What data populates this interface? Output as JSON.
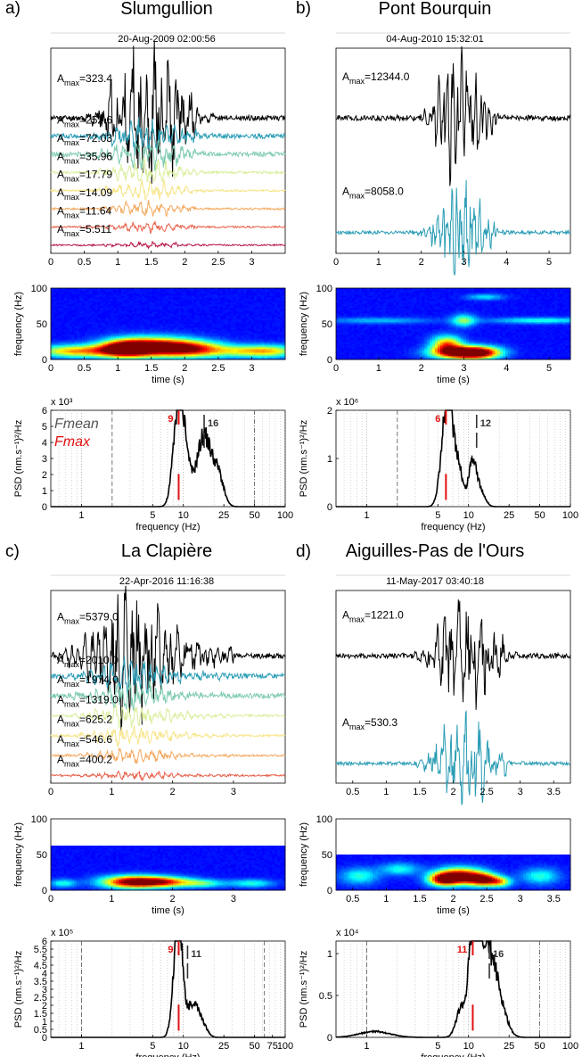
{
  "colors": {
    "trace_palette": [
      "#000000",
      "#2b9db5",
      "#7fcbb0",
      "#d9ee9c",
      "#f7e58a",
      "#f4a95f",
      "#e8604a",
      "#b51545"
    ],
    "fmean": "#333333",
    "fmax": "#e01010",
    "spec_background": "#0a0a8c"
  },
  "chart_data": [
    {
      "label": "a)",
      "title": "Slumgullion",
      "timestamp": "20-Aug-2009 02:00:56",
      "traces": {
        "type": "line",
        "x_range": [
          0,
          3.5
        ],
        "x_ticks": [
          0,
          0.5,
          1,
          1.5,
          2,
          2.5,
          3
        ],
        "x_tick_labels": [
          "0",
          "0.5",
          "1",
          "1.5",
          "2",
          "2.5",
          "3"
        ],
        "event_window": [
          0.7,
          2.2
        ],
        "peak_time": 1.45,
        "series": [
          {
            "a_max": "323.4",
            "seed": 11
          },
          {
            "a_max": "252.6",
            "seed": 12
          },
          {
            "a_max": "72.03",
            "seed": 13
          },
          {
            "a_max": "35.96",
            "seed": 14
          },
          {
            "a_max": "17.79",
            "seed": 15
          },
          {
            "a_max": "14.09",
            "seed": 16
          },
          {
            "a_max": "11.64",
            "seed": 17
          },
          {
            "a_max": "5.511",
            "seed": 18
          }
        ]
      },
      "spectrogram": {
        "type": "heatmap",
        "ylabel": "frequency (Hz)",
        "xlabel": "time (s)",
        "y_range": [
          0,
          100
        ],
        "y_ticks": [
          0,
          50,
          100
        ],
        "x_range": [
          0,
          3.5
        ],
        "x_ticks": [
          0,
          0.5,
          1,
          1.5,
          2,
          2.5,
          3
        ],
        "x_tick_labels": [
          "0",
          "0.5",
          "1",
          "1.5",
          "2",
          "2.5",
          "3"
        ],
        "nyquist": 100,
        "blobs": [
          {
            "t": 1.5,
            "f": 18,
            "st": 0.42,
            "sf": 9,
            "a": 1.0
          },
          {
            "t": 1.1,
            "f": 15,
            "st": 0.25,
            "sf": 8,
            "a": 0.8
          },
          {
            "t": 2.1,
            "f": 15,
            "st": 0.35,
            "sf": 8,
            "a": 0.65
          },
          {
            "t": 0.6,
            "f": 12,
            "st": 0.35,
            "sf": 6,
            "a": 0.45
          },
          {
            "t": 2.9,
            "f": 12,
            "st": 0.4,
            "sf": 6,
            "a": 0.4
          },
          {
            "t": 0.15,
            "f": 12,
            "st": 0.3,
            "sf": 6,
            "a": 0.35
          },
          {
            "t": 3.3,
            "f": 12,
            "st": 0.3,
            "sf": 6,
            "a": 0.35
          }
        ]
      },
      "psd": {
        "type": "line",
        "xscale": "log",
        "x_range": [
          0.5,
          100
        ],
        "x_ticks": [
          1,
          5,
          10,
          25,
          50,
          100
        ],
        "x_tick_labels": [
          "1",
          "5",
          "10",
          "25",
          "50",
          "100"
        ],
        "xlabel": "frequency (Hz)",
        "ylabel": "PSD (nm.s⁻¹)²/Hz",
        "multiplier": "x 10³",
        "y_range": [
          0,
          6
        ],
        "y_ticks": [
          0,
          1,
          2,
          3,
          4,
          5,
          6
        ],
        "dashed_lines": [
          2
        ],
        "dashdot_lines": [
          50
        ],
        "peaks": [
          {
            "f": 9,
            "a": 6.6,
            "w": 0.05
          },
          {
            "f": 10.5,
            "a": 1.8,
            "w": 0.04
          },
          {
            "f": 12.5,
            "a": 1.0,
            "w": 0.05
          },
          {
            "f": 15,
            "a": 2.6,
            "w": 0.05
          },
          {
            "f": 17,
            "a": 2.0,
            "w": 0.05
          },
          {
            "f": 20,
            "a": 1.5,
            "w": 0.06
          },
          {
            "f": 22.5,
            "a": 1.1,
            "w": 0.05
          }
        ],
        "fmax": {
          "f": 9,
          "label": "9"
        },
        "fmean": {
          "f": 16,
          "label": "16"
        }
      }
    },
    {
      "label": "b)",
      "title": "Pont Bourquin",
      "timestamp": "04-Aug-2010 15:32:01",
      "traces": {
        "type": "line",
        "x_range": [
          0,
          5.5
        ],
        "x_ticks": [
          0,
          1,
          2,
          3,
          4,
          5
        ],
        "x_tick_labels": [
          "0",
          "1",
          "2",
          "3",
          "4",
          "5"
        ],
        "event_window": [
          2.2,
          3.8
        ],
        "peak_time": 2.9,
        "series": [
          {
            "a_max": "12344.0",
            "seed": 21
          },
          {
            "a_max": "8058.0",
            "seed": 22
          }
        ]
      },
      "spectrogram": {
        "type": "heatmap",
        "ylabel": "frequency (Hz)",
        "xlabel": "time (s)",
        "y_range": [
          0,
          100
        ],
        "y_ticks": [
          0,
          50,
          100
        ],
        "x_range": [
          0,
          5.5
        ],
        "x_ticks": [
          0,
          1,
          2,
          3,
          4,
          5
        ],
        "x_tick_labels": [
          "0",
          "1",
          "2",
          "3",
          "4",
          "5"
        ],
        "nyquist": 100,
        "blobs": [
          {
            "t": 2.9,
            "f": 10,
            "st": 0.45,
            "sf": 6,
            "a": 1.0
          },
          {
            "t": 2.6,
            "f": 22,
            "st": 0.25,
            "sf": 8,
            "a": 0.65
          },
          {
            "t": 3.4,
            "f": 10,
            "st": 0.35,
            "sf": 6,
            "a": 0.7
          },
          {
            "t": 3.0,
            "f": 55,
            "st": 0.2,
            "sf": 6,
            "a": 0.4
          },
          {
            "t": 4.8,
            "f": 55,
            "st": 0.8,
            "sf": 3,
            "a": 0.3
          },
          {
            "t": 1.0,
            "f": 55,
            "st": 0.9,
            "sf": 3,
            "a": 0.2
          },
          {
            "t": 3.5,
            "f": 88,
            "st": 0.3,
            "sf": 3,
            "a": 0.25
          }
        ]
      },
      "psd": {
        "type": "line",
        "xscale": "log",
        "x_range": [
          0.5,
          100
        ],
        "x_ticks": [
          1,
          5,
          10,
          25,
          50,
          100
        ],
        "x_tick_labels": [
          "1",
          "5",
          "10",
          "25",
          "50",
          "100"
        ],
        "xlabel": "frequency (Hz)",
        "ylabel": "PSD (nm.s⁻¹)²/Hz",
        "multiplier": "x 10⁶",
        "y_range": [
          0,
          2
        ],
        "y_ticks": [
          0,
          1,
          2
        ],
        "dashed_lines": [
          2
        ],
        "dashdot_lines": [],
        "peaks": [
          {
            "f": 6.3,
            "a": 2.2,
            "w": 0.05
          },
          {
            "f": 5.4,
            "a": 0.3,
            "w": 0.04
          },
          {
            "f": 8.0,
            "a": 0.75,
            "w": 0.04
          },
          {
            "f": 11,
            "a": 1.0,
            "w": 0.04
          },
          {
            "f": 13.5,
            "a": 0.25,
            "w": 0.04
          }
        ],
        "fmax": {
          "f": 6,
          "label": "6"
        },
        "fmean": {
          "f": 12,
          "label": "12"
        }
      }
    },
    {
      "label": "c)",
      "title": "La Clapière",
      "timestamp": "22-Apr-2016 11:16:38",
      "traces": {
        "type": "line",
        "x_range": [
          0,
          3.85
        ],
        "x_ticks": [
          0,
          1,
          2,
          3
        ],
        "x_tick_labels": [
          "0",
          "1",
          "2",
          "3"
        ],
        "event_window": [
          1.0,
          3.0
        ],
        "peak_time": 1.3,
        "series": [
          {
            "a_max": "5379.0",
            "seed": 31
          },
          {
            "a_max": "2010.0",
            "seed": 32
          },
          {
            "a_max": "1974.0",
            "seed": 33
          },
          {
            "a_max": "1319.0",
            "seed": 34
          },
          {
            "a_max": "625.2",
            "seed": 35
          },
          {
            "a_max": "546.6",
            "seed": 36
          },
          {
            "a_max": "400.2",
            "seed": 37
          }
        ]
      },
      "spectrogram": {
        "type": "heatmap",
        "ylabel": "frequency (Hz)",
        "xlabel": "time (s)",
        "y_range": [
          0,
          100
        ],
        "y_ticks": [
          0,
          50,
          100
        ],
        "x_range": [
          0,
          3.85
        ],
        "x_ticks": [
          0,
          1,
          2,
          3
        ],
        "x_tick_labels": [
          "0",
          "1",
          "2",
          "3"
        ],
        "nyquist": 62.5,
        "blobs": [
          {
            "t": 1.35,
            "f": 12,
            "st": 0.35,
            "sf": 6,
            "a": 1.0
          },
          {
            "t": 1.9,
            "f": 12,
            "st": 0.3,
            "sf": 5,
            "a": 0.6
          },
          {
            "t": 2.5,
            "f": 10,
            "st": 0.25,
            "sf": 4,
            "a": 0.35
          },
          {
            "t": 0.2,
            "f": 10,
            "st": 0.15,
            "sf": 4,
            "a": 0.3
          },
          {
            "t": 3.3,
            "f": 10,
            "st": 0.25,
            "sf": 4,
            "a": 0.3
          }
        ]
      },
      "psd": {
        "type": "line",
        "xscale": "log",
        "x_range": [
          0.5,
          100
        ],
        "x_ticks": [
          1,
          5,
          10,
          25,
          50,
          75,
          100
        ],
        "x_tick_labels": [
          "1",
          "5",
          "10",
          "25",
          "50",
          "75",
          "100"
        ],
        "xlabel": "frequency (Hz)",
        "ylabel": "PSD (nm.s⁻¹)²/Hz",
        "multiplier": "x 10⁵",
        "y_range": [
          0,
          6
        ],
        "y_ticks": [
          0,
          0.5,
          1,
          1.5,
          2,
          2.5,
          3,
          3.5,
          4,
          4.5,
          5,
          5.5,
          6
        ],
        "dashed_lines": [
          1,
          62.5
        ],
        "dashdot_lines": [],
        "peaks": [
          {
            "f": 9,
            "a": 6.5,
            "w": 0.04
          },
          {
            "f": 8.3,
            "a": 1.5,
            "w": 0.04
          },
          {
            "f": 11.5,
            "a": 1.5,
            "w": 0.04
          },
          {
            "f": 13.5,
            "a": 1.5,
            "w": 0.04
          },
          {
            "f": 16,
            "a": 0.6,
            "w": 0.04
          }
        ],
        "fmax": {
          "f": 9,
          "label": "9"
        },
        "fmean": {
          "f": 11,
          "label": "11"
        }
      }
    },
    {
      "label": "d)",
      "title": "Aiguilles-Pas de l'Ours",
      "timestamp": "11-May-2017 03:40:18",
      "traces": {
        "type": "line",
        "x_range": [
          0.25,
          3.75
        ],
        "x_ticks": [
          0.5,
          1,
          1.5,
          2,
          2.5,
          3,
          3.5
        ],
        "x_tick_labels": [
          "0.5",
          "1",
          "1.5",
          "2",
          "2.5",
          "3",
          "3.5"
        ],
        "event_window": [
          1.6,
          2.8
        ],
        "peak_time": 2.15,
        "series": [
          {
            "a_max": "1221.0",
            "seed": 41
          },
          {
            "a_max": "530.3",
            "seed": 42
          }
        ]
      },
      "spectrogram": {
        "type": "heatmap",
        "ylabel": "frequency (Hz)",
        "xlabel": "time (s)",
        "y_range": [
          0,
          100
        ],
        "y_ticks": [
          0,
          50,
          100
        ],
        "x_range": [
          0.25,
          3.75
        ],
        "x_ticks": [
          0.5,
          1,
          1.5,
          2,
          2.5,
          3,
          3.5
        ],
        "x_tick_labels": [
          "0.5",
          "1",
          "1.5",
          "2",
          "2.5",
          "3",
          "3.5"
        ],
        "nyquist": 50,
        "blobs": [
          {
            "t": 2.1,
            "f": 20,
            "st": 0.25,
            "sf": 8,
            "a": 1.0
          },
          {
            "t": 2.45,
            "f": 15,
            "st": 0.15,
            "sf": 6,
            "a": 0.8
          },
          {
            "t": 1.85,
            "f": 15,
            "st": 0.15,
            "sf": 6,
            "a": 0.7
          },
          {
            "t": 2.7,
            "f": 12,
            "st": 0.12,
            "sf": 5,
            "a": 0.5
          },
          {
            "t": 0.6,
            "f": 20,
            "st": 0.2,
            "sf": 8,
            "a": 0.3
          },
          {
            "t": 3.3,
            "f": 20,
            "st": 0.2,
            "sf": 8,
            "a": 0.3
          },
          {
            "t": 1.2,
            "f": 30,
            "st": 0.2,
            "sf": 6,
            "a": 0.28
          }
        ]
      },
      "psd": {
        "type": "line",
        "xscale": "log",
        "x_range": [
          0.5,
          100
        ],
        "x_ticks": [
          1,
          5,
          10,
          25,
          50,
          100
        ],
        "x_tick_labels": [
          "1",
          "5",
          "10",
          "25",
          "50",
          "100"
        ],
        "xlabel": "frequency (Hz)",
        "ylabel": "PSD (nm.s⁻¹)²/Hz",
        "multiplier": "x 10⁴",
        "y_range": [
          0,
          1.15
        ],
        "y_ticks": [
          0,
          0.5,
          1
        ],
        "dashed_lines": [
          1
        ],
        "dashdot_lines": [
          50
        ],
        "peaks": [
          {
            "f": 11,
            "a": 1.1,
            "w": 0.04
          },
          {
            "f": 13,
            "a": 0.85,
            "w": 0.05
          },
          {
            "f": 16,
            "a": 0.75,
            "w": 0.06
          },
          {
            "f": 20,
            "a": 0.4,
            "w": 0.07
          },
          {
            "f": 8.5,
            "a": 0.35,
            "w": 0.05
          },
          {
            "f": 1.2,
            "a": 0.07,
            "w": 0.15
          }
        ],
        "fmax": {
          "f": 11,
          "label": "11"
        },
        "fmean": {
          "f": 16,
          "label": "16"
        }
      }
    }
  ],
  "legend": {
    "fmean_label": "Fmean",
    "fmax_label": "Fmax"
  },
  "amax_label": "A"
}
